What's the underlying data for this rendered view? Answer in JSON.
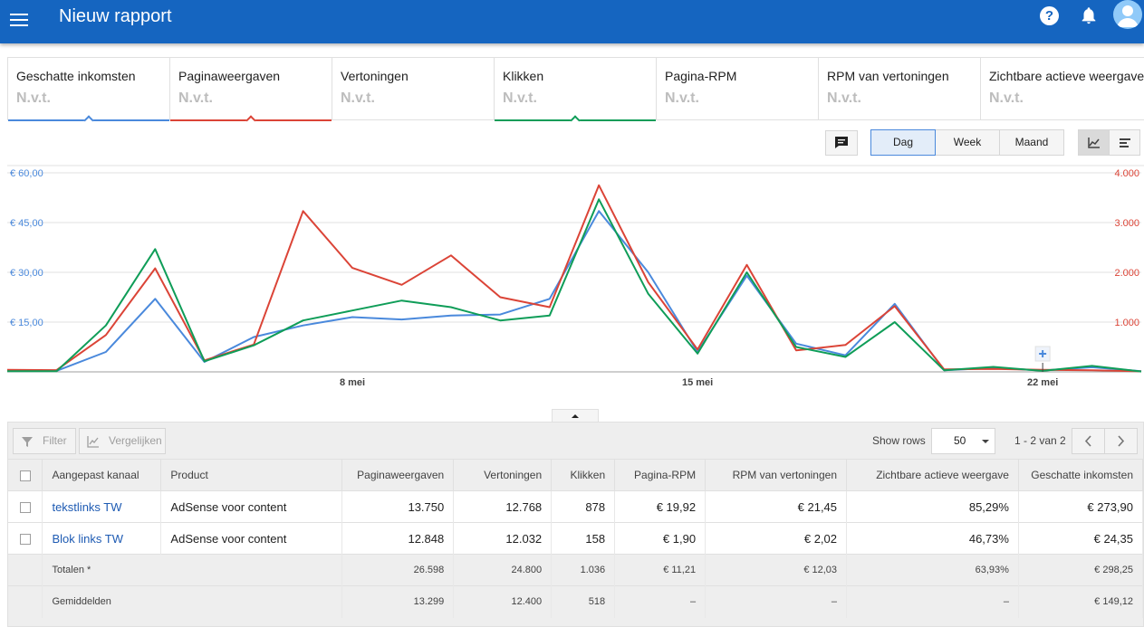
{
  "header": {
    "title": "Nieuw rapport",
    "help_icon": "help-icon",
    "bell_icon": "notifications-icon",
    "avatar_icon": "account-icon"
  },
  "metrics": [
    {
      "label": "Geschatte inkomsten",
      "value": "N.v.t.",
      "color": "#4a89dc",
      "active": true
    },
    {
      "label": "Paginaweergaven",
      "value": "N.v.t.",
      "color": "#db4437",
      "active": true
    },
    {
      "label": "Vertoningen",
      "value": "N.v.t.",
      "color": "",
      "active": false
    },
    {
      "label": "Klikken",
      "value": "N.v.t.",
      "color": "#0f9d58",
      "active": true
    },
    {
      "label": "Pagina-RPM",
      "value": "N.v.t.",
      "color": "",
      "active": false
    },
    {
      "label": "RPM van vertoningen",
      "value": "N.v.t.",
      "color": "",
      "active": false
    },
    {
      "label": "Zichtbare actieve weergave",
      "value": "N.v.t.",
      "color": "",
      "active": false
    }
  ],
  "period": {
    "day": "Dag",
    "week": "Week",
    "month": "Maand",
    "selected": "Dag"
  },
  "chart_data": {
    "type": "line",
    "x": [
      "1 mei",
      "2 mei",
      "3 mei",
      "4 mei",
      "5 mei",
      "6 mei",
      "7 mei",
      "8 mei",
      "9 mei",
      "10 mei",
      "11 mei",
      "12 mei",
      "13 mei",
      "14 mei",
      "15 mei",
      "16 mei",
      "17 mei",
      "18 mei",
      "19 mei",
      "20 mei",
      "21 mei",
      "22 mei",
      "23 mei",
      "24 mei"
    ],
    "x_ticks": [
      "8 mei",
      "15 mei",
      "22 mei"
    ],
    "y_left_ticks": [
      "€ 15,00",
      "€ 30,00",
      "€ 45,00",
      "€ 60,00"
    ],
    "y_right_ticks": [
      "1.000",
      "2.000",
      "3.000",
      "4.000"
    ],
    "ylim_left": [
      0,
      60
    ],
    "ylim_right": [
      0,
      4000
    ],
    "grid": true,
    "series": [
      {
        "name": "Geschatte inkomsten",
        "axis": "left",
        "color": "#4a89dc",
        "values": [
          0.3,
          0.3,
          6,
          22,
          3,
          10.5,
          14,
          16.5,
          15.8,
          17,
          17.3,
          22,
          48.5,
          30,
          6,
          29,
          8.5,
          5,
          20.5,
          0.5,
          1.2,
          0.4,
          1.4,
          0.2
        ]
      },
      {
        "name": "Paginaweergaven",
        "axis": "right",
        "color": "#db4437",
        "values": [
          40,
          35,
          740,
          2080,
          230,
          550,
          3230,
          2090,
          1750,
          2340,
          1500,
          1300,
          3750,
          1800,
          450,
          2150,
          430,
          540,
          1320,
          50,
          60,
          40,
          30,
          10
        ]
      },
      {
        "name": "Klikken",
        "axis": "left",
        "color": "#0f9d58",
        "values": [
          0.2,
          0.2,
          14,
          37,
          3.2,
          8,
          15.5,
          18.5,
          21.5,
          19.5,
          15.5,
          17,
          52,
          23.5,
          5.5,
          30,
          7.5,
          4.5,
          15,
          0.5,
          1.5,
          0.3,
          1.8,
          0.1
        ]
      }
    ]
  },
  "table": {
    "filter_label": "Filter",
    "compare_label": "Vergelijken",
    "show_rows_label": "Show rows",
    "rows_value": "50",
    "paging_text": "1 - 2 van 2",
    "columns": [
      "Aangepast kanaal",
      "Product",
      "Paginaweergaven",
      "Vertoningen",
      "Klikken",
      "Pagina-RPM",
      "RPM van vertoningen",
      "Zichtbare actieve weergave",
      "Geschatte inkomsten"
    ],
    "rows": [
      {
        "channel": "tekstlinks TW",
        "product": "AdSense voor content",
        "pageviews": "13.750",
        "impressions": "12.768",
        "clicks": "878",
        "page_rpm": "€ 19,92",
        "imp_rpm": "€ 21,45",
        "active_view": "85,29%",
        "earnings": "€ 273,90"
      },
      {
        "channel": "Blok links TW",
        "product": "AdSense voor content",
        "pageviews": "12.848",
        "impressions": "12.032",
        "clicks": "158",
        "page_rpm": "€ 1,90",
        "imp_rpm": "€ 2,02",
        "active_view": "46,73%",
        "earnings": "€ 24,35"
      }
    ],
    "totals": {
      "label": "Totalen *",
      "pageviews": "26.598",
      "impressions": "24.800",
      "clicks": "1.036",
      "page_rpm": "€ 11,21",
      "imp_rpm": "€ 12,03",
      "active_view": "63,93%",
      "earnings": "€ 298,25"
    },
    "averages": {
      "label": "Gemiddelden",
      "pageviews": "13.299",
      "impressions": "12.400",
      "clicks": "518",
      "page_rpm": "–",
      "imp_rpm": "–",
      "active_view": "–",
      "earnings": "€ 149,12"
    }
  }
}
